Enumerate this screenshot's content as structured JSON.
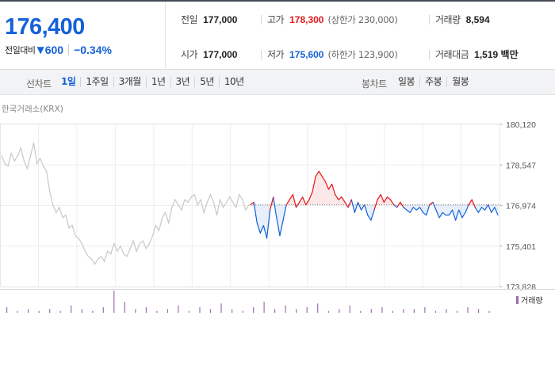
{
  "quote": {
    "price": "176,400",
    "change_label": "전일대비",
    "change_icon": "down-triangle-icon",
    "change_value": "600",
    "change_rate": "−0.34%"
  },
  "stats": {
    "prev_close": {
      "label": "전일",
      "value": "177,000"
    },
    "high": {
      "label": "고가",
      "value": "178,300",
      "sub": "(상한가 230,000)"
    },
    "volume": {
      "label": "거래량",
      "value": "8,594"
    },
    "open": {
      "label": "시가",
      "value": "177,000"
    },
    "low": {
      "label": "저가",
      "value": "175,600",
      "sub": "(하한가 123,900)"
    },
    "trade_value": {
      "label": "거래대금",
      "value": "1,519 백만"
    }
  },
  "periods": {
    "line_label": "선차트",
    "line_items": [
      "1일",
      "1주일",
      "3개월",
      "1년",
      "3년",
      "5년",
      "10년"
    ],
    "active": "1일",
    "candle_label": "봉차트",
    "candle_items": [
      "일봉",
      "주봉",
      "월봉"
    ]
  },
  "chart": {
    "exchange": "한국거래소(KRX)",
    "volume_label": "거래량"
  },
  "colors": {
    "up": "#e0171a",
    "down": "#1461d8",
    "grey_line": "#c8c8c8",
    "volume": "#9a6fb0"
  },
  "chart_data": {
    "type": "line",
    "title": "",
    "ylim": [
      173828,
      180120
    ],
    "yticks": [
      180120,
      178547,
      176974,
      175401,
      173828
    ],
    "ytick_labels": [
      "180,120",
      "178,547",
      "176,974",
      "175,401",
      "173,828"
    ],
    "reference_price": 177000,
    "grid": true,
    "series": [
      {
        "values": [
          178900,
          178600,
          178500,
          179000,
          178700,
          178900,
          179200,
          178700,
          178400,
          178900,
          179400,
          178600,
          178800,
          178500,
          178300,
          177500,
          177000,
          176700,
          176900,
          176500,
          176600,
          176100,
          176200,
          175800,
          175700,
          175500,
          175200,
          175000,
          174900,
          174700,
          174900,
          175000,
          174800,
          175200,
          175100,
          175500,
          175200,
          175400,
          175100,
          175000,
          175300,
          175600,
          175200,
          175500,
          175600,
          175300,
          175500,
          175800,
          176200,
          176000,
          176500,
          176700,
          176300,
          176900,
          177200,
          177000,
          176800,
          177200,
          177100,
          177300,
          177400,
          177000,
          177200,
          176700,
          177100,
          177400,
          177100,
          176600,
          177200,
          176900,
          177100,
          177300,
          177100,
          176900,
          177400,
          177200,
          176800,
          177000
        ]
      },
      {
        "values": [
          177000,
          177100,
          176300,
          175900,
          176200,
          175700,
          176800,
          177300,
          176500,
          175800,
          176400,
          177000,
          177200,
          177400,
          176900,
          177100,
          177300,
          177000,
          177200,
          177500,
          178100,
          178300,
          178100,
          177900,
          177600,
          177800,
          177400,
          177200,
          177300,
          177100,
          176900,
          177200,
          176700,
          177100,
          176800,
          177000,
          176600,
          176400,
          176800,
          177200,
          177400,
          177100,
          177300,
          177200,
          177000,
          176900,
          177100,
          176900,
          176800,
          176700,
          176900,
          176800,
          176900,
          176700,
          176600,
          177000,
          177100,
          176800,
          176500,
          176700,
          176600,
          176600,
          176800,
          176400,
          176800,
          176500,
          176700,
          177000,
          177200,
          176900,
          176700,
          176900,
          176800,
          177000,
          176700,
          176900,
          176600
        ]
      }
    ],
    "volume": [
      3,
      1,
      2,
      1,
      2,
      1,
      4,
      2,
      1,
      3,
      12,
      6,
      2,
      3,
      1,
      2,
      4,
      1,
      3,
      2,
      5,
      2,
      1,
      3,
      6,
      2,
      4,
      2,
      3,
      5,
      1,
      2,
      4,
      1,
      2,
      3,
      1,
      2,
      2,
      3,
      1,
      2,
      1,
      3,
      2,
      1
    ]
  }
}
